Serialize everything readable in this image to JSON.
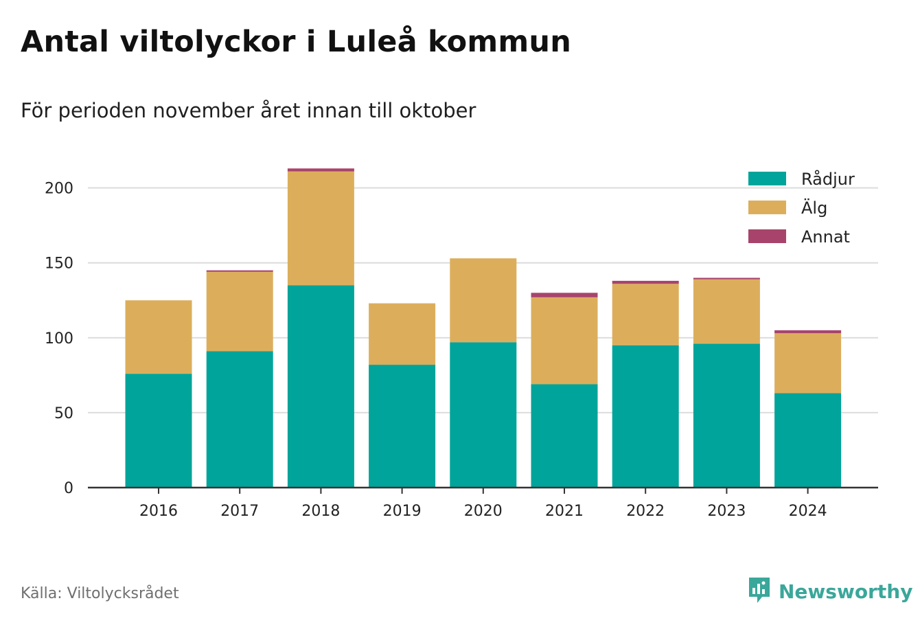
{
  "title": "Antal viltolyckor i Luleå kommun",
  "subtitle": "För perioden november året innan till oktober",
  "source": "Källa: Viltolycksrådet",
  "brand": {
    "name": "Newsworthy",
    "icon": "bar-chart-speech-bubble-icon",
    "color": "#3aa79a"
  },
  "chart_data": {
    "type": "bar",
    "stacked": true,
    "title": "",
    "xlabel": "",
    "ylabel": "",
    "categories": [
      "2016",
      "2017",
      "2018",
      "2019",
      "2020",
      "2021",
      "2022",
      "2023",
      "2024"
    ],
    "series": [
      {
        "name": "Rådjur",
        "color": "#00a49a",
        "values": [
          76,
          91,
          135,
          82,
          97,
          69,
          95,
          96,
          63
        ]
      },
      {
        "name": "Älg",
        "color": "#dcae5c",
        "values": [
          49,
          53,
          76,
          41,
          56,
          58,
          41,
          43,
          40
        ]
      },
      {
        "name": "Annat",
        "color": "#a8446b",
        "values": [
          0,
          1,
          2,
          0,
          0,
          3,
          2,
          1,
          2
        ]
      }
    ],
    "ylim": [
      0,
      220
    ],
    "yticks": [
      0,
      50,
      100,
      150,
      200
    ],
    "grid": true,
    "legend_position": "top-right"
  }
}
